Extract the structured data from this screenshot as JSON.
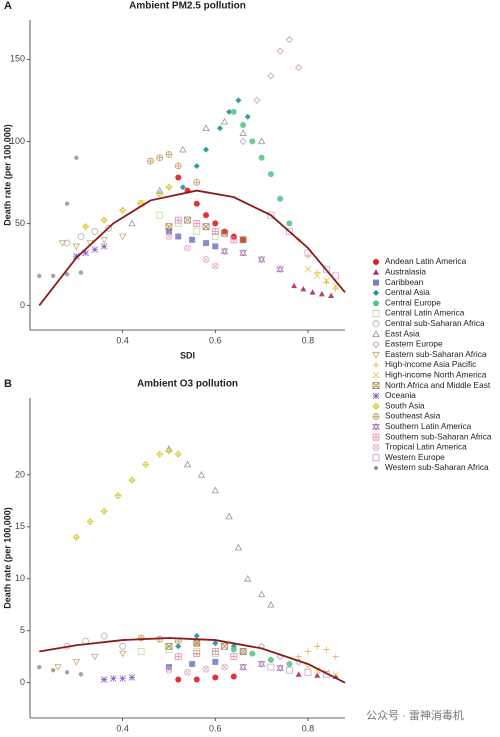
{
  "chart_data": [
    {
      "type": "scatter",
      "label": "A",
      "title": "Ambient PM2.5 pollution",
      "x_label": "SDI",
      "y_label": "Death rate (per 100,000)",
      "xlim": [
        0.2,
        0.88
      ],
      "ylim": [
        -15,
        174
      ],
      "xticks": [
        0.4,
        0.6,
        0.8
      ],
      "yticks": [
        0,
        50,
        100,
        150
      ],
      "series": [
        {
          "name": "Andean Latin America",
          "color": "#e41a1c",
          "marker": "circle",
          "x": [
            0.52,
            0.54,
            0.56,
            0.58,
            0.6,
            0.62,
            0.64,
            0.66
          ],
          "values": [
            78,
            70,
            62,
            55,
            50,
            45,
            42,
            40
          ]
        },
        {
          "name": "Australasia",
          "color": "#a8325a",
          "marker": "triangle",
          "x": [
            0.77,
            0.79,
            0.81,
            0.83,
            0.85
          ],
          "values": [
            12,
            10,
            8,
            7,
            6
          ]
        },
        {
          "name": "Caribbean",
          "color": "#7b7fc4",
          "marker": "square",
          "x": [
            0.5,
            0.52,
            0.55,
            0.58,
            0.6
          ],
          "values": [
            45,
            42,
            40,
            38,
            36
          ]
        },
        {
          "name": "Central Asia",
          "color": "#1e8fa0",
          "marker": "diamond",
          "x": [
            0.53,
            0.56,
            0.58,
            0.61,
            0.63,
            0.65,
            0.67
          ],
          "values": [
            72,
            85,
            95,
            108,
            118,
            125,
            115
          ]
        },
        {
          "name": "Central Europe",
          "color": "#5bc48a",
          "marker": "circle",
          "x": [
            0.64,
            0.66,
            0.68,
            0.7,
            0.72,
            0.74,
            0.76
          ],
          "values": [
            118,
            110,
            100,
            90,
            80,
            65,
            50
          ]
        },
        {
          "name": "Central Latin America",
          "color": "#b8d98a",
          "marker": "open-square",
          "x": [
            0.44,
            0.48,
            0.52,
            0.56,
            0.6
          ],
          "values": [
            62,
            55,
            50,
            45,
            42
          ]
        },
        {
          "name": "Central sub-Saharan Africa",
          "color": "#aaaaaa",
          "marker": "open-circle",
          "x": [
            0.28,
            0.31,
            0.34,
            0.37
          ],
          "values": [
            38,
            42,
            45,
            47
          ]
        },
        {
          "name": "East Asia",
          "color": "#8a8a9a",
          "marker": "open-triangle",
          "x": [
            0.42,
            0.48,
            0.53,
            0.58,
            0.62,
            0.66,
            0.7
          ],
          "values": [
            50,
            70,
            95,
            108,
            112,
            105,
            100
          ]
        },
        {
          "name": "Eastern Europe",
          "color": "#c58ac6",
          "marker": "open-diamond",
          "x": [
            0.66,
            0.69,
            0.72,
            0.74,
            0.76,
            0.78
          ],
          "values": [
            100,
            125,
            140,
            155,
            162,
            145
          ]
        },
        {
          "name": "Eastern sub-Saharan Africa",
          "color": "#c4a060",
          "marker": "open-triangle-down",
          "x": [
            0.27,
            0.3,
            0.33,
            0.36,
            0.4
          ],
          "values": [
            38,
            36,
            38,
            40,
            42
          ]
        },
        {
          "name": "High-income Asia Pacific",
          "color": "#e8a83b",
          "marker": "plus",
          "x": [
            0.78,
            0.8,
            0.82,
            0.84,
            0.86
          ],
          "values": [
            40,
            30,
            20,
            14,
            10
          ]
        },
        {
          "name": "High-income North America",
          "color": "#e0c840",
          "marker": "x",
          "x": [
            0.8,
            0.82,
            0.84,
            0.86
          ],
          "values": [
            22,
            18,
            15,
            12
          ]
        },
        {
          "name": "North Africa and Middle East",
          "color": "#a07840",
          "marker": "square-x",
          "x": [
            0.5,
            0.54,
            0.58,
            0.62,
            0.66
          ],
          "values": [
            48,
            52,
            48,
            44,
            40
          ]
        },
        {
          "name": "Oceania",
          "color": "#8050c0",
          "marker": "asterisk",
          "x": [
            0.3,
            0.32,
            0.34,
            0.36
          ],
          "values": [
            30,
            32,
            34,
            36
          ]
        },
        {
          "name": "South Asia",
          "color": "#d4c020",
          "marker": "diamond-plus",
          "x": [
            0.32,
            0.36,
            0.4,
            0.44,
            0.48,
            0.5
          ],
          "values": [
            48,
            52,
            58,
            62,
            68,
            72
          ]
        },
        {
          "name": "Southeast Asia",
          "color": "#c09050",
          "marker": "circle-plus",
          "x": [
            0.46,
            0.48,
            0.5,
            0.52,
            0.56
          ],
          "values": [
            88,
            90,
            92,
            85,
            75
          ]
        },
        {
          "name": "Southern Latin America",
          "color": "#a070b0",
          "marker": "star",
          "x": [
            0.62,
            0.66,
            0.7,
            0.74
          ],
          "values": [
            33,
            32,
            28,
            22
          ]
        },
        {
          "name": "Southern sub-Saharan Africa",
          "color": "#e080b0",
          "marker": "square-plus",
          "x": [
            0.52,
            0.56,
            0.6,
            0.64
          ],
          "values": [
            52,
            50,
            45,
            40
          ]
        },
        {
          "name": "Tropical Latin America",
          "color": "#e0a0c0",
          "marker": "circle-x",
          "x": [
            0.5,
            0.54,
            0.58,
            0.6
          ],
          "values": [
            42,
            35,
            28,
            24
          ]
        },
        {
          "name": "Western Europe",
          "color": "#c0a0d0",
          "marker": "open-square",
          "x": [
            0.72,
            0.76,
            0.8,
            0.84,
            0.86
          ],
          "values": [
            55,
            45,
            32,
            22,
            18
          ]
        },
        {
          "name": "Western sub-Saharan Africa",
          "color": "#999999",
          "marker": "dot",
          "x": [
            0.22,
            0.25,
            0.28,
            0.31,
            0.28,
            0.3
          ],
          "values": [
            18,
            18,
            19,
            20,
            62,
            90
          ]
        }
      ],
      "fit": {
        "color": "#8b1a1a",
        "x": [
          0.22,
          0.3,
          0.38,
          0.46,
          0.56,
          0.64,
          0.72,
          0.8,
          0.88
        ],
        "values": [
          0,
          29,
          50,
          64,
          70,
          66,
          55,
          35,
          8
        ]
      }
    },
    {
      "type": "scatter",
      "label": "B",
      "title": "Ambient O3 pollution",
      "x_label": "SDI",
      "y_label": "Death rate (per 100,000)",
      "xlim": [
        0.2,
        0.88
      ],
      "ylim": [
        -3.4,
        27.4
      ],
      "xticks": [
        0.4,
        0.6,
        0.8
      ],
      "yticks": [
        0,
        5,
        10,
        15,
        20
      ],
      "series": [
        {
          "color": "#e41a1c",
          "marker": "circle",
          "x": [
            0.52,
            0.56,
            0.6,
            0.64
          ],
          "values": [
            0.3,
            0.3,
            0.5,
            0.6
          ]
        },
        {
          "color": "#a8325a",
          "marker": "triangle",
          "x": [
            0.78,
            0.82,
            0.86
          ],
          "values": [
            0.8,
            0.7,
            0.6
          ]
        },
        {
          "color": "#7b7fc4",
          "marker": "square",
          "x": [
            0.5,
            0.55,
            0.6
          ],
          "values": [
            1.5,
            1.8,
            2
          ]
        },
        {
          "color": "#1e8fa0",
          "marker": "diamond",
          "x": [
            0.52,
            0.56,
            0.6,
            0.64
          ],
          "values": [
            3.5,
            4.5,
            3.8,
            3.5
          ]
        },
        {
          "color": "#5bc48a",
          "marker": "circle",
          "x": [
            0.64,
            0.68,
            0.72,
            0.76
          ],
          "values": [
            3.2,
            2.8,
            2.2,
            1.8
          ]
        },
        {
          "color": "#b8d98a",
          "marker": "open-square",
          "x": [
            0.44,
            0.5,
            0.56,
            0.6
          ],
          "values": [
            3,
            3.2,
            3,
            2.8
          ]
        },
        {
          "color": "#aaaaaa",
          "marker": "open-circle",
          "x": [
            0.28,
            0.32,
            0.36,
            0.4
          ],
          "values": [
            3.5,
            4,
            4.5,
            3.5
          ]
        },
        {
          "color": "#8a8a9a",
          "marker": "open-triangle",
          "x": [
            0.5,
            0.54,
            0.57,
            0.6,
            0.63,
            0.65,
            0.67,
            0.7,
            0.72
          ],
          "values": [
            22.5,
            21,
            20,
            18.5,
            16,
            13,
            10,
            8.5,
            7.5
          ]
        },
        {
          "color": "#c58ac6",
          "marker": "open-diamond",
          "x": [
            0.66,
            0.7,
            0.74,
            0.78
          ],
          "values": [
            3,
            3.5,
            2.5,
            2
          ]
        },
        {
          "color": "#c4a060",
          "marker": "open-triangle-down",
          "x": [
            0.26,
            0.3,
            0.34,
            0.4
          ],
          "values": [
            1.5,
            2,
            2.5,
            2.8
          ]
        },
        {
          "color": "#e8a83b",
          "marker": "plus",
          "x": [
            0.78,
            0.8,
            0.82,
            0.84,
            0.86
          ],
          "values": [
            2.5,
            3,
            3.5,
            3.2,
            2.5
          ]
        },
        {
          "color": "#e0c840",
          "marker": "x",
          "x": [
            0.8,
            0.82,
            0.84,
            0.86
          ],
          "values": [
            1.5,
            1.2,
            1,
            0.8
          ]
        },
        {
          "color": "#a07840",
          "marker": "square-x",
          "x": [
            0.5,
            0.56,
            0.62,
            0.66
          ],
          "values": [
            3.5,
            3.8,
            3.5,
            3
          ]
        },
        {
          "color": "#8050c0",
          "marker": "asterisk",
          "x": [
            0.36,
            0.38,
            0.4,
            0.42
          ],
          "values": [
            0.3,
            0.4,
            0.4,
            0.5
          ]
        },
        {
          "color": "#d4c020",
          "marker": "diamond-plus",
          "x": [
            0.3,
            0.33,
            0.36,
            0.39,
            0.42,
            0.45,
            0.48,
            0.5,
            0.52
          ],
          "values": [
            14,
            15.5,
            16.5,
            18,
            19.5,
            21,
            22,
            22.3,
            22
          ]
        },
        {
          "color": "#c09050",
          "marker": "circle-plus",
          "x": [
            0.44,
            0.48,
            0.52,
            0.56
          ],
          "values": [
            4.3,
            4.2,
            4,
            3.8
          ]
        },
        {
          "color": "#a070b0",
          "marker": "star",
          "x": [
            0.66,
            0.7,
            0.74
          ],
          "values": [
            1.5,
            1.8,
            1.4
          ]
        },
        {
          "color": "#e080b0",
          "marker": "square-plus",
          "x": [
            0.52,
            0.56,
            0.6,
            0.64
          ],
          "values": [
            2.5,
            2.8,
            3,
            2.5
          ]
        },
        {
          "color": "#e0a0c0",
          "marker": "circle-x",
          "x": [
            0.5,
            0.54,
            0.58,
            0.62
          ],
          "values": [
            1.2,
            1,
            1.3,
            1.5
          ]
        },
        {
          "color": "#c0a0d0",
          "marker": "open-square",
          "x": [
            0.72,
            0.76,
            0.8,
            0.84
          ],
          "values": [
            1.5,
            1.2,
            1,
            0.8
          ]
        },
        {
          "color": "#999999",
          "marker": "dot",
          "x": [
            0.22,
            0.25,
            0.28,
            0.31
          ],
          "values": [
            1.5,
            1.2,
            1,
            0.8
          ]
        }
      ],
      "fit": {
        "color": "#8b1a1a",
        "x": [
          0.22,
          0.3,
          0.4,
          0.5,
          0.6,
          0.7,
          0.8,
          0.88
        ],
        "values": [
          3,
          3.6,
          4.1,
          4.3,
          4.1,
          3.3,
          1.8,
          0
        ]
      }
    }
  ],
  "watermark": "公众号 · 雷神消毒机"
}
